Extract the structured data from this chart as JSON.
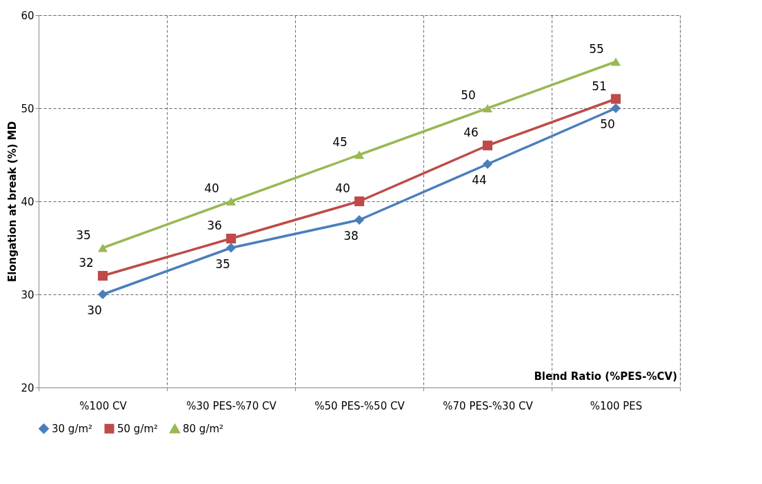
{
  "chart_data": {
    "type": "line",
    "xlabel": "Blend Ratio (%PES-%CV)",
    "ylabel": "Elongation at break (%) MD",
    "categories": [
      "%100 CV",
      "%30 PES-%70 CV",
      "%50 PES-%50 CV",
      "%70 PES-%30 CV",
      "%100 PES"
    ],
    "series": [
      {
        "name": "30 g/m²",
        "color": "#4a7ebb",
        "marker": "diamond",
        "values": [
          30,
          35,
          38,
          44,
          50
        ]
      },
      {
        "name": "50 g/m²",
        "color": "#be4b48",
        "marker": "square",
        "values": [
          32,
          36,
          40,
          46,
          51
        ]
      },
      {
        "name": "80 g/m²",
        "color": "#98b954",
        "marker": "triangle",
        "values": [
          35,
          40,
          45,
          50,
          55
        ]
      }
    ],
    "ylim": [
      20,
      60
    ],
    "yticks": [
      20,
      30,
      40,
      50,
      60
    ],
    "grid": true,
    "legend": "bottom",
    "data_labels": true,
    "line_style": "solid"
  }
}
